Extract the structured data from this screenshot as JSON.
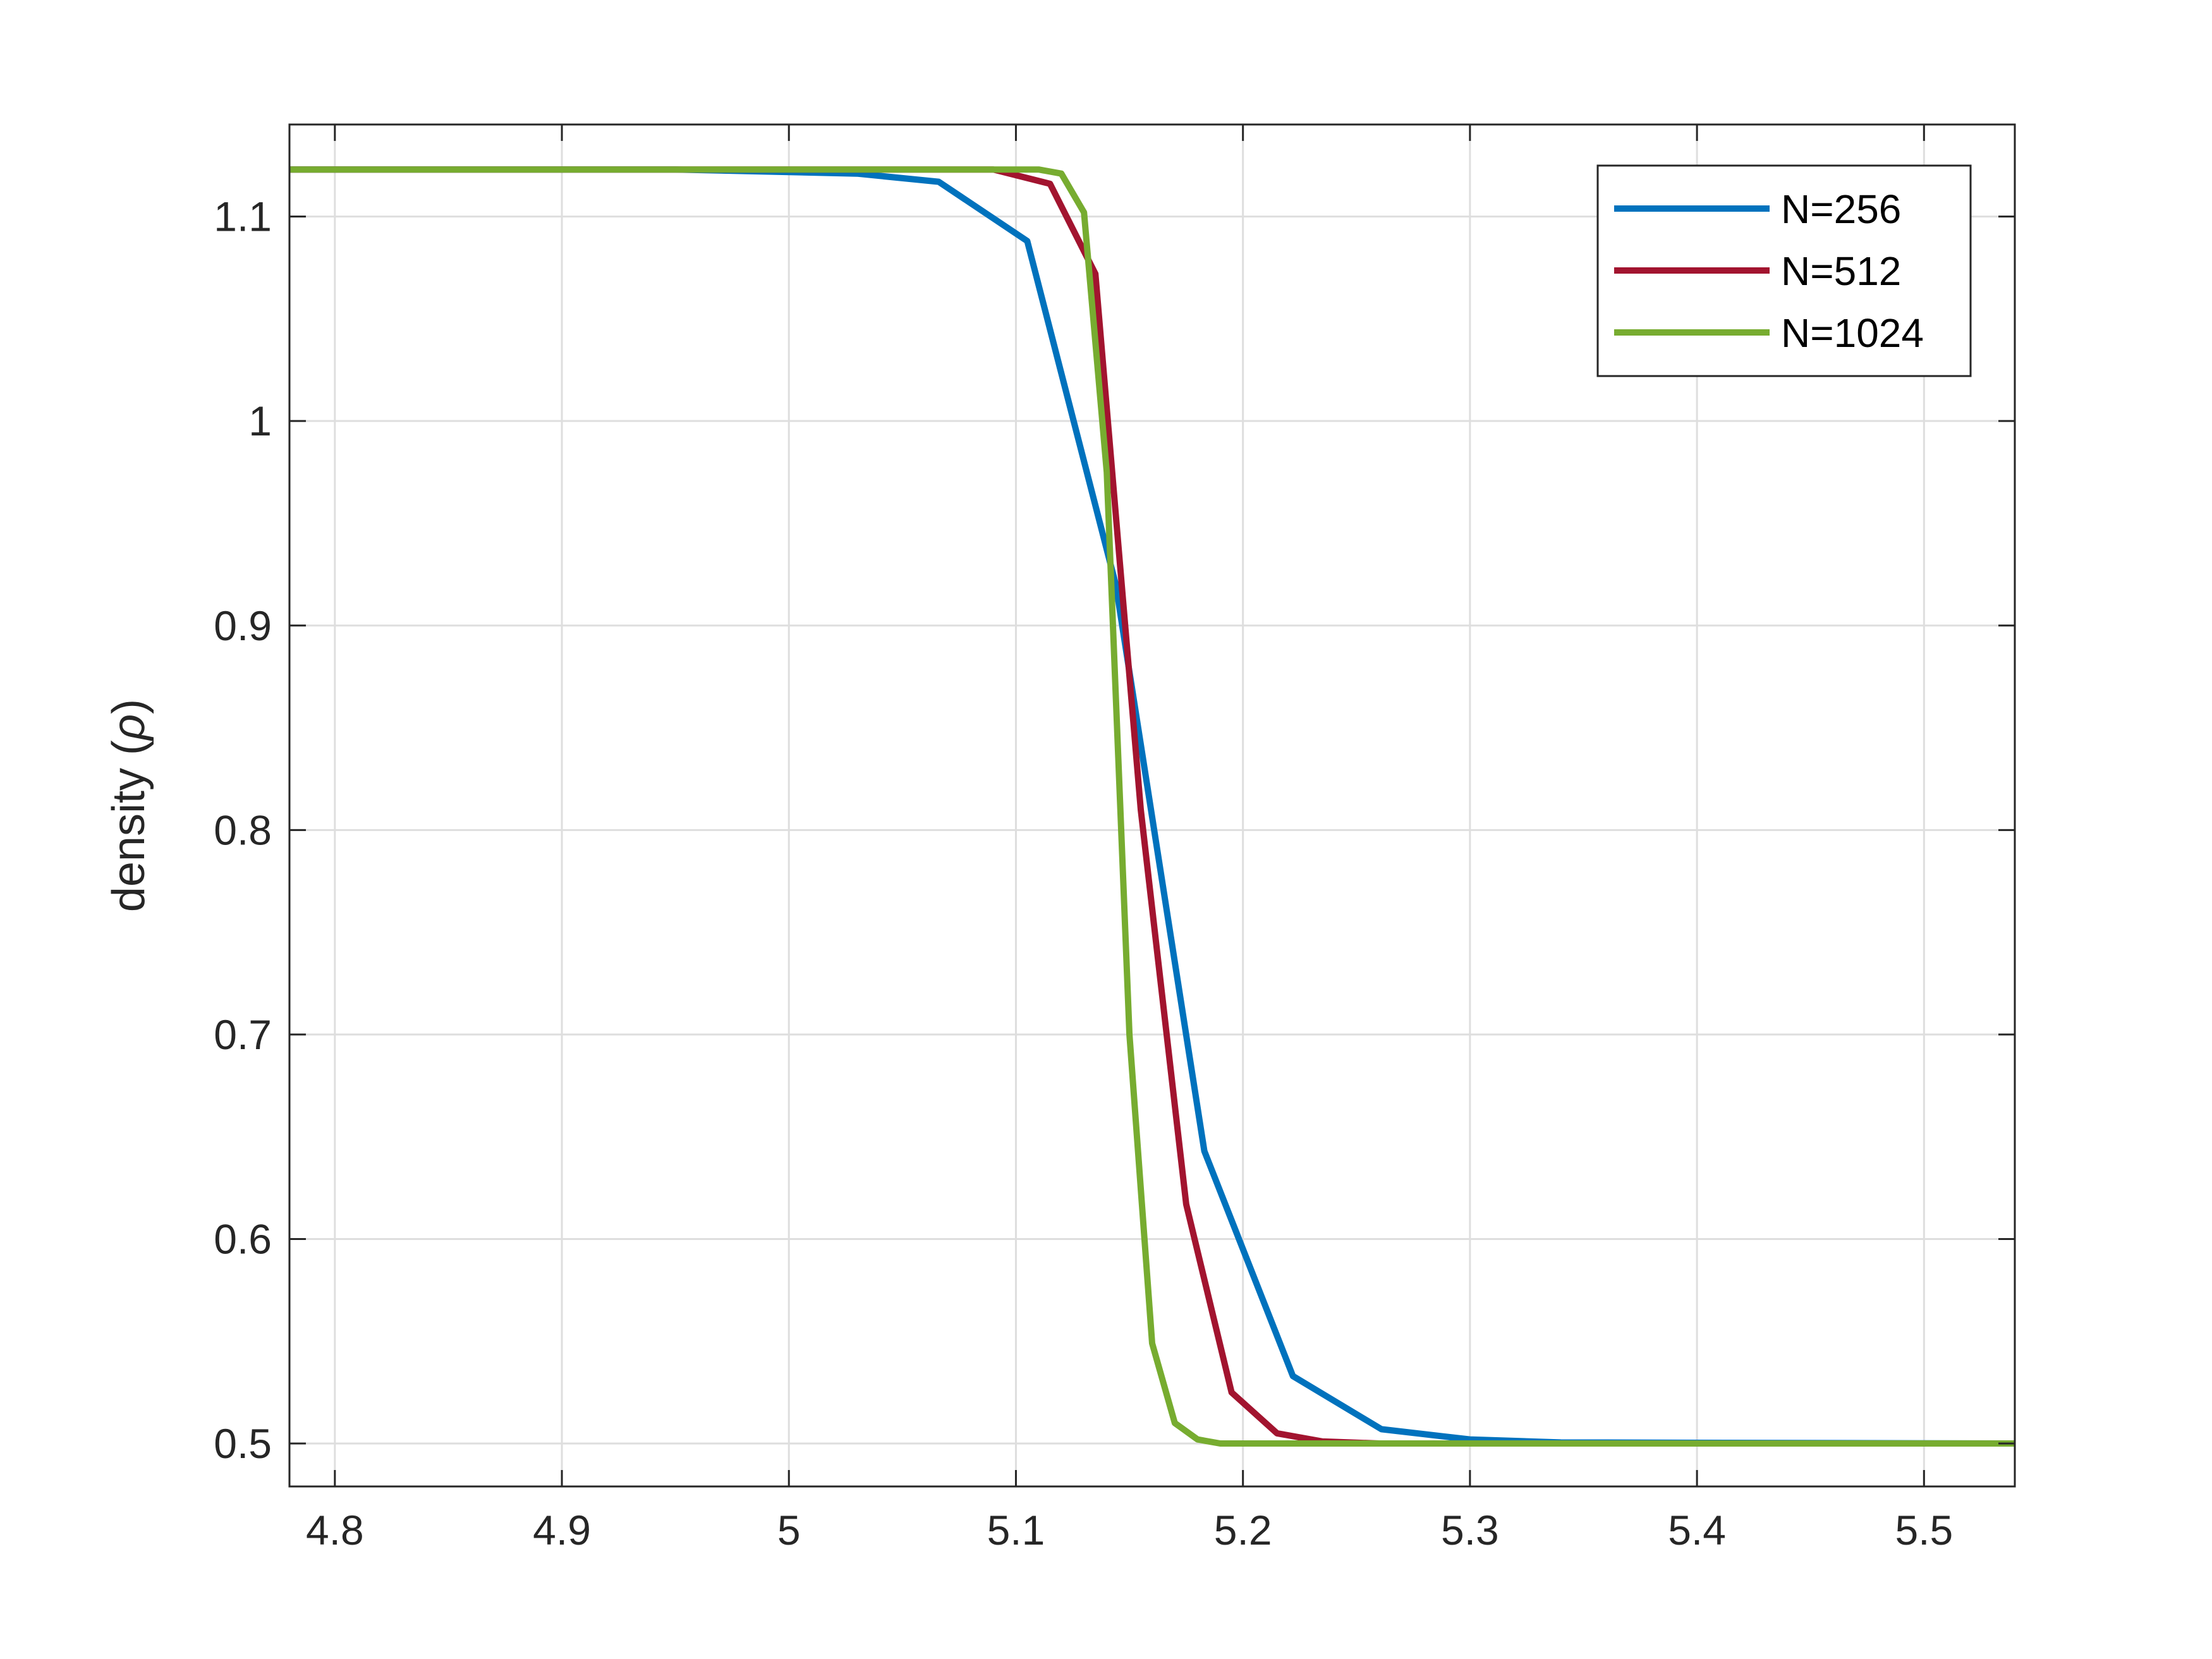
{
  "chart_data": {
    "type": "line",
    "title": "",
    "xlabel": "",
    "ylabel": "density (ρ)",
    "ylabel_text": "density (",
    "ylabel_symbol": "ρ",
    "ylabel_close": ")",
    "xlim": [
      4.78,
      5.54
    ],
    "ylim": [
      0.479,
      1.145
    ],
    "xticks": [
      4.8,
      4.9,
      5,
      5.1,
      5.2,
      5.3,
      5.4,
      5.5
    ],
    "xtick_labels": [
      "4.8",
      "4.9",
      "5",
      "5.1",
      "5.2",
      "5.3",
      "5.4",
      "5.5"
    ],
    "yticks": [
      0.5,
      0.6,
      0.7,
      0.8,
      0.9,
      1,
      1.1
    ],
    "ytick_labels": [
      "0.5",
      "0.6",
      "0.7",
      "0.8",
      "0.9",
      "1",
      "1.1"
    ],
    "grid": true,
    "legend_position": "top-right",
    "series": [
      {
        "name": "N=256",
        "color": "#0072BD",
        "points": [
          [
            4.78,
            1.123
          ],
          [
            4.95,
            1.123
          ],
          [
            5.03,
            1.121
          ],
          [
            5.066,
            1.117
          ],
          [
            5.105,
            1.088
          ],
          [
            5.144,
            0.92
          ],
          [
            5.183,
            0.643
          ],
          [
            5.222,
            0.533
          ],
          [
            5.261,
            0.507
          ],
          [
            5.3,
            0.502
          ],
          [
            5.34,
            0.5005
          ],
          [
            5.54,
            0.5
          ]
        ]
      },
      {
        "name": "N=512",
        "color": "#A2142F",
        "points": [
          [
            4.78,
            1.123
          ],
          [
            5.09,
            1.123
          ],
          [
            5.115,
            1.116
          ],
          [
            5.135,
            1.072
          ],
          [
            5.155,
            0.81
          ],
          [
            5.175,
            0.617
          ],
          [
            5.195,
            0.525
          ],
          [
            5.215,
            0.505
          ],
          [
            5.235,
            0.501
          ],
          [
            5.26,
            0.5
          ],
          [
            5.54,
            0.5
          ]
        ]
      },
      {
        "name": "N=1024",
        "color": "#77AC30",
        "points": [
          [
            4.78,
            1.123
          ],
          [
            5.11,
            1.123
          ],
          [
            5.12,
            1.121
          ],
          [
            5.13,
            1.102
          ],
          [
            5.14,
            0.975
          ],
          [
            5.15,
            0.7
          ],
          [
            5.16,
            0.549
          ],
          [
            5.17,
            0.51
          ],
          [
            5.18,
            0.502
          ],
          [
            5.19,
            0.5
          ],
          [
            5.54,
            0.5
          ]
        ]
      }
    ]
  }
}
